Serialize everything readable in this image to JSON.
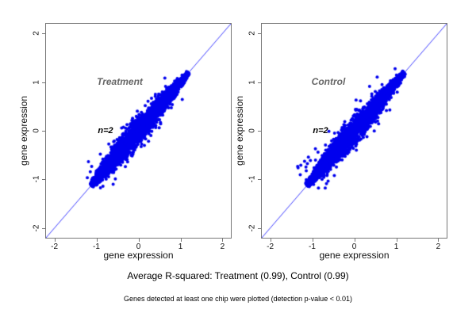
{
  "figure": {
    "bg_color": "#ffffff",
    "frame_color": "#777777",
    "captions": {
      "rsquared_line": "Average R-squared: Treatment (0.99), Control (0.99)",
      "note_line": "Genes detected at least one chip were plotted (detection p-value < 0.01)"
    }
  },
  "chart_data": [
    {
      "type": "scatter",
      "title": "Treatment",
      "annotation": "n=2",
      "xlabel": "gene expression",
      "ylabel": "gene expression",
      "xlim": [
        -2.2,
        2.2
      ],
      "ylim": [
        -2.2,
        2.2
      ],
      "xticks": [
        -2,
        -1,
        0,
        1,
        2
      ],
      "yticks": [
        2,
        1,
        0,
        -1,
        -2
      ],
      "grid": false,
      "legend": "none",
      "reference_line": "y = x (identity)",
      "avg_r_squared": 0.99,
      "point_color": "#0000ee",
      "line_color": "#3d3dff",
      "label_color": "#666666",
      "cloud": {
        "description": "dense comet-shaped cloud of replicate gene-expression values hugging the identity line",
        "n": 3600,
        "t_min": -1.12,
        "t_max": 1.19,
        "skew": 1.25,
        "sigma_min": 0.02,
        "sigma_max": 0.09,
        "outlier_rate": 0.018,
        "outlier_spread": 0.8,
        "point_radius": 2,
        "seed": 1234
      }
    },
    {
      "type": "scatter",
      "title": "Control",
      "annotation": "n=2",
      "xlabel": "gene expression",
      "ylabel": "gene expression",
      "xlim": [
        -2.2,
        2.2
      ],
      "ylim": [
        -2.2,
        2.2
      ],
      "xticks": [
        -2,
        -1,
        0,
        1,
        2
      ],
      "yticks": [
        2,
        1,
        0,
        -1,
        -2
      ],
      "grid": false,
      "legend": "none",
      "reference_line": "y = x (identity)",
      "avg_r_squared": 0.99,
      "point_color": "#0000ee",
      "line_color": "#3d3dff",
      "label_color": "#666666",
      "cloud": {
        "description": "dense comet-shaped cloud of replicate gene-expression values hugging the identity line",
        "n": 3600,
        "t_min": -1.12,
        "t_max": 1.19,
        "skew": 1.25,
        "sigma_min": 0.02,
        "sigma_max": 0.09,
        "outlier_rate": 0.018,
        "outlier_spread": 0.8,
        "point_radius": 2,
        "seed": 98765
      }
    }
  ]
}
